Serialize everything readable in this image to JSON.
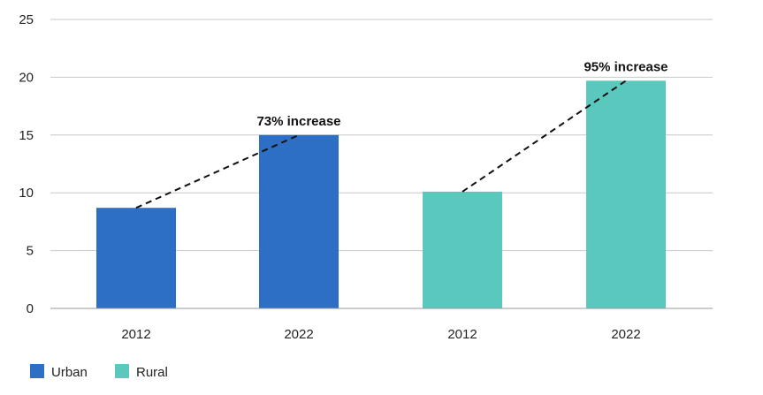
{
  "chart_data": {
    "type": "bar",
    "categories": [
      "2012",
      "2022",
      "2012",
      "2022"
    ],
    "series": [
      {
        "name": "Urban",
        "color": "#2d6fc4",
        "bars": [
          {
            "category_index": 0,
            "value": 8.7
          },
          {
            "category_index": 1,
            "value": 15.0
          }
        ]
      },
      {
        "name": "Rural",
        "color": "#5bc8bd",
        "bars": [
          {
            "category_index": 2,
            "value": 10.1
          },
          {
            "category_index": 3,
            "value": 19.7
          }
        ]
      }
    ],
    "ylim": [
      0,
      25
    ],
    "yticks": [
      "0",
      "5",
      "10",
      "15",
      "20",
      "25"
    ],
    "grid": true,
    "legend_position": "bottom-left",
    "annotations": [
      {
        "text": "73% increase",
        "from_category_index": 0,
        "to_category_index": 1
      },
      {
        "text": "95% increase",
        "from_category_index": 2,
        "to_category_index": 3
      }
    ]
  }
}
